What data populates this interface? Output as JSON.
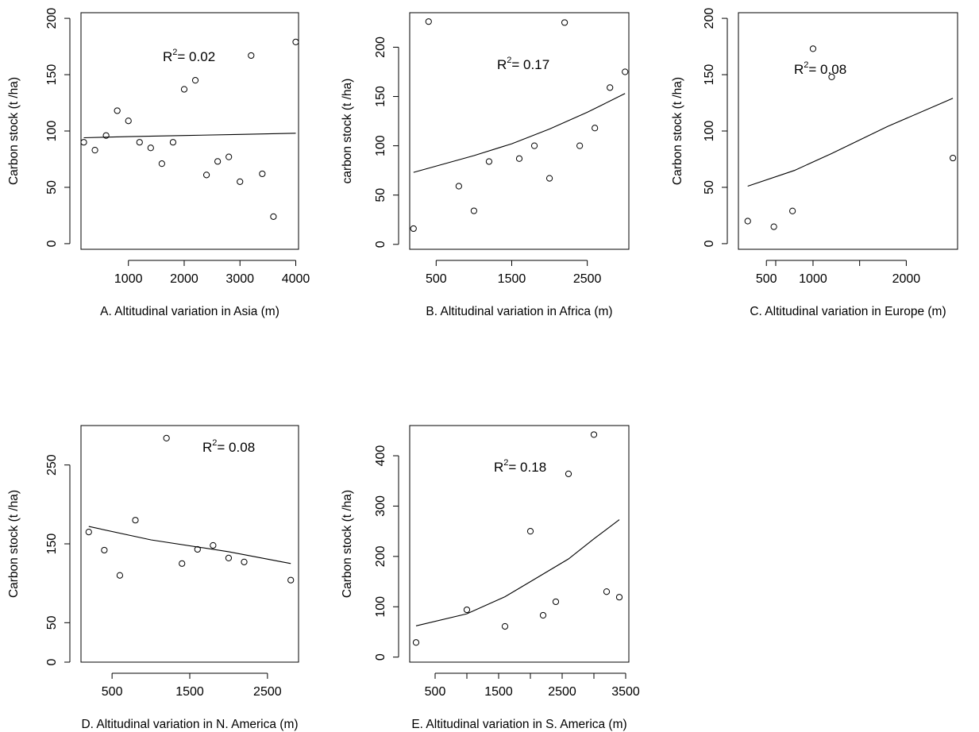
{
  "chart_data": [
    {
      "type": "scatter",
      "xlabel": "A. Altitudinal variation in Asia (m)",
      "ylabel": "Carbon stock (t /ha)",
      "annotation": {
        "prefix": "R",
        "sup": "2",
        "text": "= 0.02"
      },
      "xlim": [
        150,
        4050
      ],
      "ylim": [
        -5,
        205
      ],
      "xticks": [
        1000,
        2000,
        3000,
        4000
      ],
      "yticks": [
        0,
        50,
        100,
        150,
        200
      ],
      "points": [
        [
          200,
          90
        ],
        [
          400,
          83
        ],
        [
          600,
          96
        ],
        [
          800,
          118
        ],
        [
          1000,
          109
        ],
        [
          1200,
          90
        ],
        [
          1400,
          85
        ],
        [
          1600,
          71
        ],
        [
          1800,
          90
        ],
        [
          2000,
          137
        ],
        [
          2200,
          145
        ],
        [
          2400,
          61
        ],
        [
          2600,
          73
        ],
        [
          2800,
          77
        ],
        [
          3000,
          55
        ],
        [
          3200,
          167
        ],
        [
          3400,
          62
        ],
        [
          3600,
          24
        ],
        [
          4000,
          179
        ]
      ],
      "fit": [
        [
          200,
          94
        ],
        [
          1000,
          95
        ],
        [
          2000,
          96
        ],
        [
          3000,
          97
        ],
        [
          4000,
          98
        ]
      ]
    },
    {
      "type": "scatter",
      "xlabel": "B. Altitudinal variation in Africa (m)",
      "ylabel": "carbon stock (t /ha)",
      "annotation": {
        "prefix": "R",
        "sup": "2",
        "text": "= 0.17"
      },
      "xlim": [
        150,
        3050
      ],
      "ylim": [
        -5,
        235
      ],
      "xticks": [
        500,
        1500,
        2500
      ],
      "yticks": [
        0,
        50,
        100,
        150,
        200
      ],
      "points": [
        [
          200,
          16
        ],
        [
          400,
          226
        ],
        [
          800,
          59
        ],
        [
          1000,
          34
        ],
        [
          1200,
          84
        ],
        [
          1600,
          87
        ],
        [
          1800,
          100
        ],
        [
          2000,
          67
        ],
        [
          2200,
          225
        ],
        [
          2400,
          100
        ],
        [
          2600,
          118
        ],
        [
          2800,
          159
        ],
        [
          3000,
          175
        ]
      ],
      "fit": [
        [
          200,
          73
        ],
        [
          1000,
          90
        ],
        [
          1500,
          102
        ],
        [
          2000,
          117
        ],
        [
          2500,
          134
        ],
        [
          3000,
          153
        ]
      ]
    },
    {
      "type": "scatter",
      "xlabel": "C. Altitudinal variation in Europe (m)",
      "ylabel": "Carbon stock (t /ha)",
      "annotation": {
        "prefix": "R",
        "sup": "2",
        "text": "= 0.08"
      },
      "xlim": [
        200,
        2550
      ],
      "ylim": [
        -5,
        205
      ],
      "xticks": [
        500,
        600,
        1000,
        1500,
        2000
      ],
      "xticklabels": [
        "500",
        "",
        "1000",
        "",
        "2000"
      ],
      "custom_xticks": true,
      "yticks": [
        0,
        50,
        100,
        150,
        200
      ],
      "points": [
        [
          300,
          20
        ],
        [
          580,
          15
        ],
        [
          780,
          29
        ],
        [
          1000,
          173
        ],
        [
          1200,
          148
        ],
        [
          2500,
          76
        ]
      ],
      "fit": [
        [
          300,
          51
        ],
        [
          800,
          65
        ],
        [
          1200,
          80
        ],
        [
          1800,
          104
        ],
        [
          2500,
          129
        ]
      ]
    },
    {
      "type": "scatter",
      "xlabel": "D. Altitudinal variation in N. America (m)",
      "ylabel": "Carbon stock (t /ha)",
      "annotation": {
        "prefix": "R",
        "sup": "2",
        "text": "= 0.08"
      },
      "xlim": [
        100,
        2900
      ],
      "ylim": [
        0,
        300
      ],
      "xticks": [
        500,
        1500,
        2500
      ],
      "yticks": [
        0,
        50,
        150,
        250
      ],
      "points": [
        [
          200,
          165
        ],
        [
          400,
          142
        ],
        [
          600,
          110
        ],
        [
          800,
          180
        ],
        [
          1200,
          284
        ],
        [
          1400,
          125
        ],
        [
          1600,
          143
        ],
        [
          1800,
          148
        ],
        [
          2000,
          132
        ],
        [
          2200,
          127
        ],
        [
          2800,
          104
        ]
      ],
      "fit": [
        [
          200,
          172
        ],
        [
          1000,
          155
        ],
        [
          2000,
          140
        ],
        [
          2800,
          125
        ]
      ]
    },
    {
      "type": "scatter",
      "xlabel": "E. Altitudinal variation in S. America (m)",
      "ylabel": "Carbon stock (t /ha)",
      "annotation": {
        "prefix": "R",
        "sup": "2",
        "text": "= 0.18"
      },
      "xlim": [
        100,
        3550
      ],
      "ylim": [
        -10,
        460
      ],
      "xticks": [
        500,
        1500,
        2500,
        3500
      ],
      "minor_xticks": [
        1000,
        2000,
        3000
      ],
      "yticks": [
        0,
        100,
        200,
        300,
        400
      ],
      "points": [
        [
          200,
          29
        ],
        [
          1000,
          94
        ],
        [
          1600,
          61
        ],
        [
          2000,
          250
        ],
        [
          2200,
          83
        ],
        [
          2400,
          110
        ],
        [
          2600,
          364
        ],
        [
          3000,
          442
        ],
        [
          3200,
          130
        ],
        [
          3400,
          119
        ]
      ],
      "fit": [
        [
          200,
          62
        ],
        [
          1000,
          86
        ],
        [
          1600,
          120
        ],
        [
          2000,
          150
        ],
        [
          2600,
          195
        ],
        [
          3000,
          235
        ],
        [
          3400,
          273
        ]
      ]
    }
  ]
}
